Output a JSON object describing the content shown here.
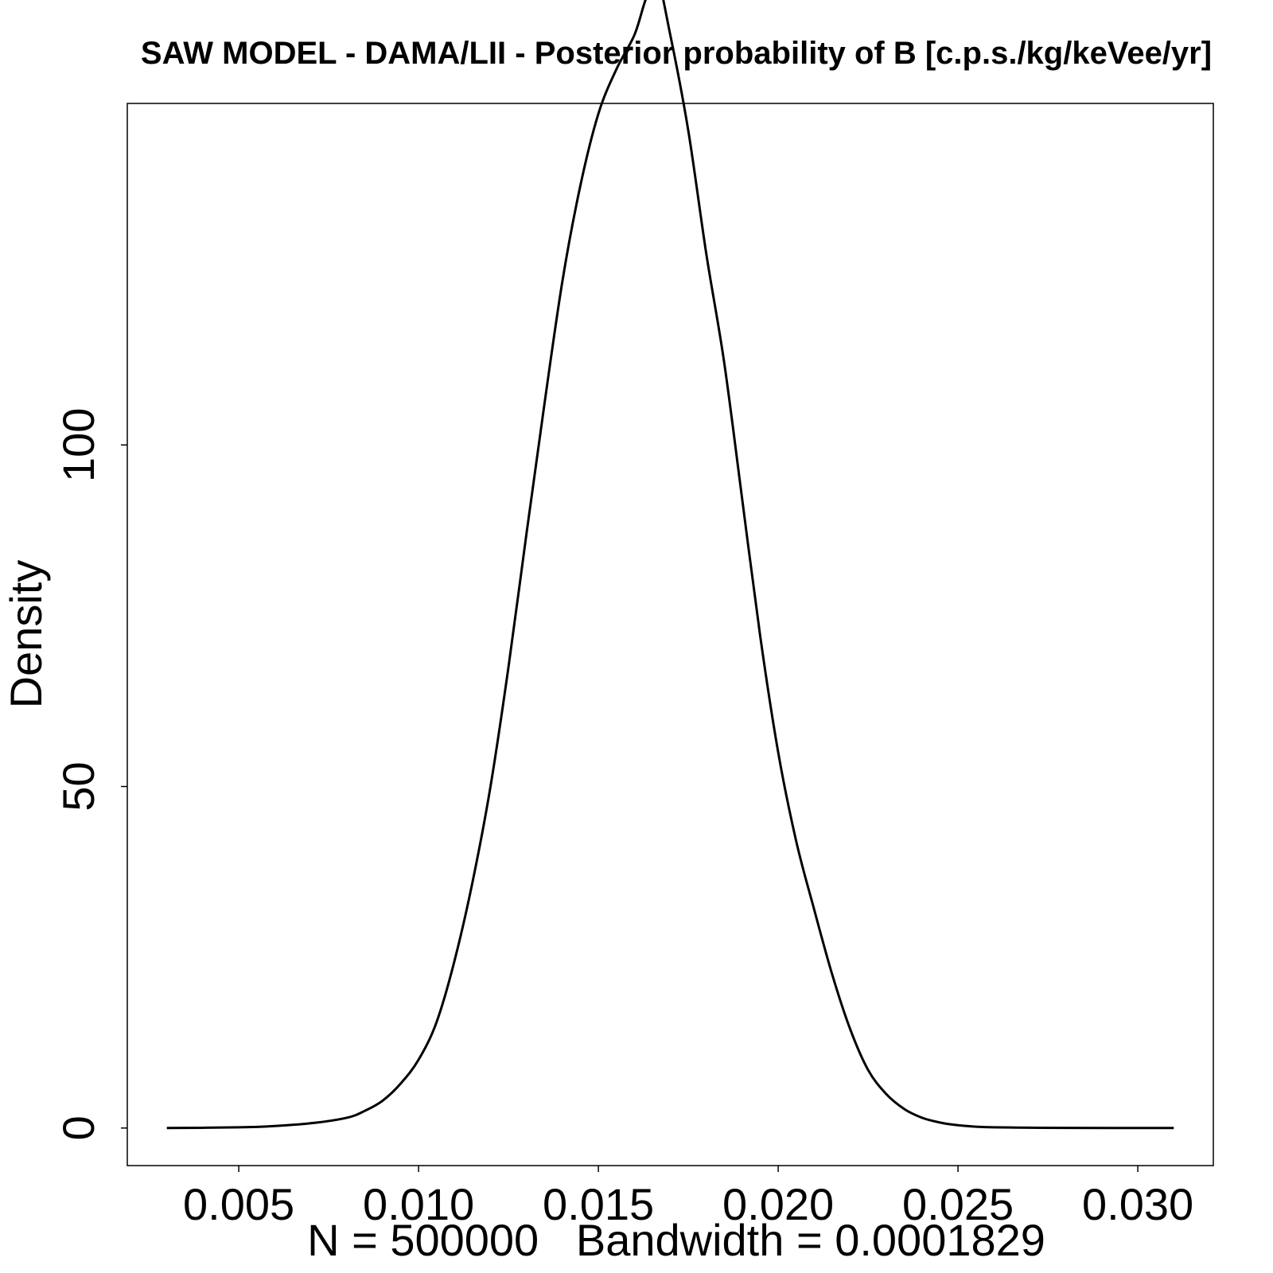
{
  "chart_data": {
    "type": "line",
    "title": "SAW MODEL - DAMA/LII - Posterior probability of B [c.p.s./kg/keVee/yr]",
    "xlabel": "N = 500000   Bandwidth = 0.0001829",
    "ylabel": "Density",
    "xlim": [
      0.0019,
      0.0321
    ],
    "ylim": [
      -5.5,
      150
    ],
    "x_ticks": [
      0.005,
      0.01,
      0.015,
      0.02,
      0.025,
      0.03
    ],
    "x_tick_labels": [
      "0.005",
      "0.010",
      "0.015",
      "0.020",
      "0.025",
      "0.030"
    ],
    "y_ticks": [
      0,
      50,
      100
    ],
    "y_tick_labels": [
      "0",
      "50",
      "100"
    ],
    "grid": false,
    "legend": "none",
    "line_color": "#000000",
    "series": [
      {
        "x": [
          0.003,
          0.005,
          0.006,
          0.007,
          0.008,
          0.0085,
          0.009,
          0.0095,
          0.01,
          0.0105,
          0.011,
          0.0115,
          0.012,
          0.0125,
          0.013,
          0.0135,
          0.014,
          0.0145,
          0.015,
          0.0155,
          0.016,
          0.0163,
          0.0166,
          0.017,
          0.0175,
          0.018,
          0.0185,
          0.019,
          0.0195,
          0.02,
          0.0205,
          0.021,
          0.0215,
          0.022,
          0.0225,
          0.023,
          0.0235,
          0.024,
          0.0245,
          0.025,
          0.0255,
          0.026,
          0.027,
          0.028,
          0.031
        ],
        "y": [
          0.0,
          0.1,
          0.3,
          0.7,
          1.5,
          2.5,
          4.0,
          6.5,
          10.0,
          15.5,
          24.5,
          36.0,
          50.0,
          67.5,
          87.0,
          106.0,
          124.0,
          138.0,
          148.5,
          155.0,
          160.0,
          165.0,
          169.0,
          160.0,
          146.0,
          128.0,
          112.0,
          92.0,
          72.0,
          55.0,
          42.0,
          32.0,
          22.5,
          14.5,
          8.5,
          5.0,
          2.8,
          1.5,
          0.8,
          0.4,
          0.2,
          0.1,
          0.05,
          0.02,
          0.0
        ]
      }
    ]
  }
}
